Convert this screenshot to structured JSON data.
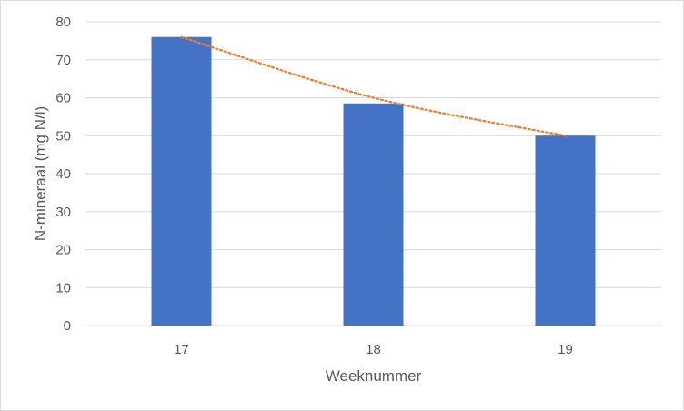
{
  "chart_data": {
    "type": "bar",
    "title": "",
    "xlabel": "Weeknummer",
    "ylabel": "N-mineraal (mg N/l)",
    "categories": [
      "17",
      "18",
      "19"
    ],
    "series": [
      {
        "values": [
          76,
          58.5,
          50
        ],
        "color": "#4472c4"
      }
    ],
    "trendline": {
      "values": [
        76,
        60,
        50
      ],
      "color": "#ed7d31",
      "style": "dotted"
    },
    "ylim": [
      0,
      80
    ],
    "yticks": [
      "0",
      "10",
      "20",
      "30",
      "40",
      "50",
      "60",
      "70",
      "80"
    ],
    "grid": true,
    "legend": false
  }
}
